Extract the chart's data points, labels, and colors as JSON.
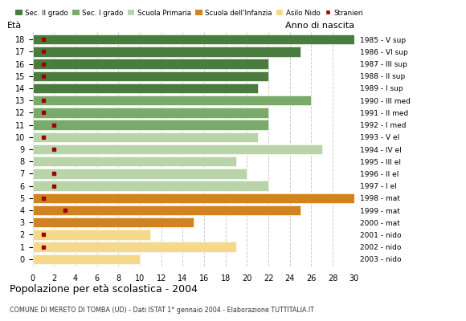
{
  "ages": [
    18,
    17,
    16,
    15,
    14,
    13,
    12,
    11,
    10,
    9,
    8,
    7,
    6,
    5,
    4,
    3,
    2,
    1,
    0
  ],
  "years": [
    "1985 - V sup",
    "1986 - VI sup",
    "1987 - III sup",
    "1988 - II sup",
    "1989 - I sup",
    "1990 - III med",
    "1991 - II med",
    "1992 - I med",
    "1993 - V el",
    "1994 - IV el",
    "1995 - III el",
    "1996 - II el",
    "1997 - I el",
    "1998 - mat",
    "1999 - mat",
    "2000 - mat",
    "2001 - nido",
    "2002 - nido",
    "2003 - nido"
  ],
  "bar_values": [
    30,
    25,
    22,
    22,
    21,
    26,
    22,
    22,
    21,
    27,
    19,
    20,
    22,
    30,
    25,
    15,
    11,
    19,
    10
  ],
  "stranieri": [
    1,
    1,
    1,
    1,
    0,
    1,
    1,
    2,
    1,
    2,
    0,
    2,
    2,
    1,
    3,
    0,
    1,
    1,
    0
  ],
  "bar_colors": [
    "#4a7c3f",
    "#4a7c3f",
    "#4a7c3f",
    "#4a7c3f",
    "#4a7c3f",
    "#7aaa6a",
    "#7aaa6a",
    "#7aaa6a",
    "#b8d4a8",
    "#b8d4a8",
    "#b8d4a8",
    "#b8d4a8",
    "#b8d4a8",
    "#d4821e",
    "#d4821e",
    "#d4821e",
    "#f5d98a",
    "#f5d98a",
    "#f5d98a"
  ],
  "legend_labels": [
    "Sec. II grado",
    "Sec. I grado",
    "Scuola Primaria",
    "Scuola dell'Infanzia",
    "Asilo Nido",
    "Stranieri"
  ],
  "legend_colors": [
    "#4a7c3f",
    "#7aaa6a",
    "#b8d4a8",
    "#d4821e",
    "#f5d98a",
    "#a00000"
  ],
  "title": "Popolazione per età scolastica - 2004",
  "subtitle": "COMUNE DI MERETO DI TOMBA (UD) - Dati ISTAT 1° gennaio 2004 - Elaborazione TUTTITALIA.IT",
  "ylabel_left": "Età",
  "ylabel_right": "Anno di nascita",
  "xlim": [
    0,
    30
  ],
  "xticks": [
    0,
    2,
    4,
    6,
    8,
    10,
    12,
    14,
    16,
    18,
    20,
    22,
    24,
    26,
    28,
    30
  ],
  "bg_color": "#ffffff",
  "bar_height": 0.82
}
